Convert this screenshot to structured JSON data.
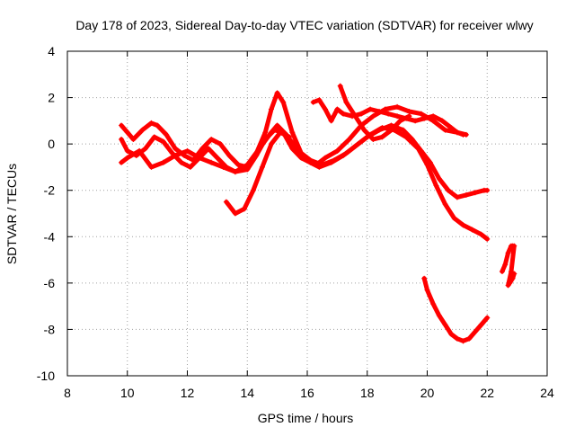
{
  "chart_data": {
    "type": "scatter",
    "title": "Day 178 of 2023, Sidereal Day-to-day VTEC variation (SDTVAR) for receiver wlwy",
    "xlabel": "GPS time / hours",
    "ylabel": "SDTVAR / TECUs",
    "xlim": [
      8,
      24
    ],
    "ylim": [
      -10,
      4
    ],
    "xticks": [
      "8",
      "10",
      "12",
      "14",
      "16",
      "18",
      "20",
      "22",
      "24"
    ],
    "yticks": [
      "-10",
      "-8",
      "-6",
      "-4",
      "-2",
      "0",
      "2",
      "4"
    ],
    "xtick_values": [
      8,
      10,
      12,
      14,
      16,
      18,
      20,
      22,
      24
    ],
    "ytick_values": [
      -10,
      -8,
      -6,
      -4,
      -2,
      0,
      2,
      4
    ],
    "grid": true,
    "marker": "+",
    "color": "#ff0000",
    "series": [
      {
        "name": "track-1",
        "x": [
          9.8,
          10.0,
          10.2,
          10.5,
          10.8,
          11.0,
          11.3,
          11.6,
          11.9,
          12.2,
          12.5,
          12.8,
          13.1,
          13.4,
          13.7,
          14.0,
          14.3,
          14.6,
          14.8,
          15.0,
          15.2,
          15.5,
          15.8,
          16.0,
          16.3,
          16.6,
          17.0,
          17.4,
          17.8,
          18.2,
          18.6,
          19.0,
          19.4,
          19.8,
          20.2,
          20.6,
          21.0,
          21.3
        ],
        "y": [
          0.8,
          0.5,
          0.2,
          0.6,
          0.9,
          0.8,
          0.4,
          -0.2,
          -0.5,
          -0.7,
          -0.2,
          0.2,
          0.0,
          -0.5,
          -0.9,
          -1.0,
          -0.4,
          0.5,
          1.5,
          2.2,
          1.8,
          0.5,
          -0.4,
          -0.6,
          -0.9,
          -0.6,
          -0.3,
          0.2,
          0.8,
          1.2,
          1.5,
          1.6,
          1.4,
          1.3,
          1.0,
          0.6,
          0.5,
          0.4
        ]
      },
      {
        "name": "track-2",
        "x": [
          9.8,
          10.0,
          10.3,
          10.6,
          10.9,
          11.2,
          11.5,
          11.8,
          12.1,
          12.4,
          12.7,
          13.0,
          13.3,
          13.6,
          14.0,
          14.3,
          14.6,
          14.9,
          15.2,
          15.5,
          15.8,
          16.1,
          16.4,
          16.8,
          17.2,
          17.6,
          18.0,
          18.4,
          18.8,
          19.2,
          19.5,
          19.8,
          20.1,
          20.4,
          20.7,
          21.0,
          21.3,
          21.6,
          21.9,
          22.0
        ],
        "y": [
          0.2,
          -0.3,
          -0.5,
          -0.2,
          0.3,
          0.1,
          -0.4,
          -0.8,
          -1.0,
          -0.6,
          -0.2,
          -0.6,
          -1.0,
          -1.2,
          -1.1,
          -0.5,
          0.2,
          0.6,
          0.5,
          -0.2,
          -0.6,
          -0.8,
          -1.0,
          -0.8,
          -0.5,
          -0.1,
          0.3,
          0.6,
          0.8,
          0.6,
          0.2,
          -0.3,
          -0.8,
          -1.5,
          -2.0,
          -2.3,
          -2.2,
          -2.1,
          -2.0,
          -2.0
        ]
      },
      {
        "name": "track-3",
        "x": [
          9.8,
          10.0,
          10.4,
          10.8,
          11.2,
          11.6,
          12.0,
          12.4,
          12.8,
          13.2,
          13.6,
          14.0,
          14.4,
          14.8,
          15.0,
          15.3,
          15.7,
          16.1,
          16.5,
          16.9,
          17.3,
          17.7,
          18.1,
          18.5,
          18.9,
          19.3,
          19.7,
          20.0,
          20.3,
          20.6,
          20.9,
          21.2,
          21.5,
          21.8,
          22.0
        ],
        "y": [
          -0.8,
          -0.6,
          -0.3,
          -1.0,
          -0.8,
          -0.5,
          -0.3,
          -0.6,
          -0.8,
          -1.0,
          -1.2,
          -0.9,
          -0.2,
          0.5,
          0.8,
          0.4,
          -0.3,
          -0.7,
          -0.9,
          -0.7,
          -0.4,
          0.0,
          0.4,
          0.7,
          0.6,
          0.3,
          -0.2,
          -0.9,
          -1.8,
          -2.6,
          -3.2,
          -3.5,
          -3.7,
          -3.9,
          -4.1
        ]
      },
      {
        "name": "track-4",
        "x": [
          13.3,
          13.6,
          13.9,
          14.2,
          14.5,
          14.8,
          15.1,
          15.4
        ],
        "y": [
          -2.5,
          -3.0,
          -2.8,
          -2.0,
          -1.0,
          0.0,
          0.5,
          0.3
        ]
      },
      {
        "name": "track-5",
        "x": [
          16.2,
          16.4,
          16.6,
          16.8,
          17.0,
          17.2,
          17.5,
          17.8,
          18.1,
          18.4,
          18.7,
          19.0,
          19.3,
          19.6,
          19.9,
          20.2,
          20.5,
          20.8,
          21.0,
          21.2
        ],
        "y": [
          1.8,
          1.9,
          1.5,
          1.0,
          1.5,
          1.3,
          1.2,
          1.3,
          1.5,
          1.4,
          1.3,
          1.2,
          1.1,
          1.0,
          1.1,
          1.2,
          1.0,
          0.7,
          0.5,
          0.4
        ]
      },
      {
        "name": "track-6",
        "x": [
          17.1,
          17.3,
          17.6,
          17.9,
          18.2,
          18.5,
          18.8,
          19.1,
          19.4
        ],
        "y": [
          2.5,
          1.8,
          1.2,
          0.6,
          0.2,
          0.3,
          0.6,
          1.0,
          1.2
        ]
      },
      {
        "name": "track-7",
        "x": [
          19.9,
          20.0,
          20.2,
          20.4,
          20.6,
          20.8,
          21.0,
          21.2,
          21.4,
          21.6,
          21.8,
          22.0
        ],
        "y": [
          -5.8,
          -6.3,
          -6.9,
          -7.4,
          -7.8,
          -8.2,
          -8.4,
          -8.5,
          -8.4,
          -8.1,
          -7.8,
          -7.5
        ]
      },
      {
        "name": "track-8",
        "x": [
          22.5,
          22.6,
          22.7,
          22.8,
          22.85,
          22.9,
          22.8,
          22.7,
          22.75,
          22.85,
          22.9
        ],
        "y": [
          -5.5,
          -5.2,
          -4.7,
          -4.4,
          -4.4,
          -4.4,
          -5.5,
          -6.1,
          -6.0,
          -5.8,
          -5.6
        ]
      }
    ]
  }
}
